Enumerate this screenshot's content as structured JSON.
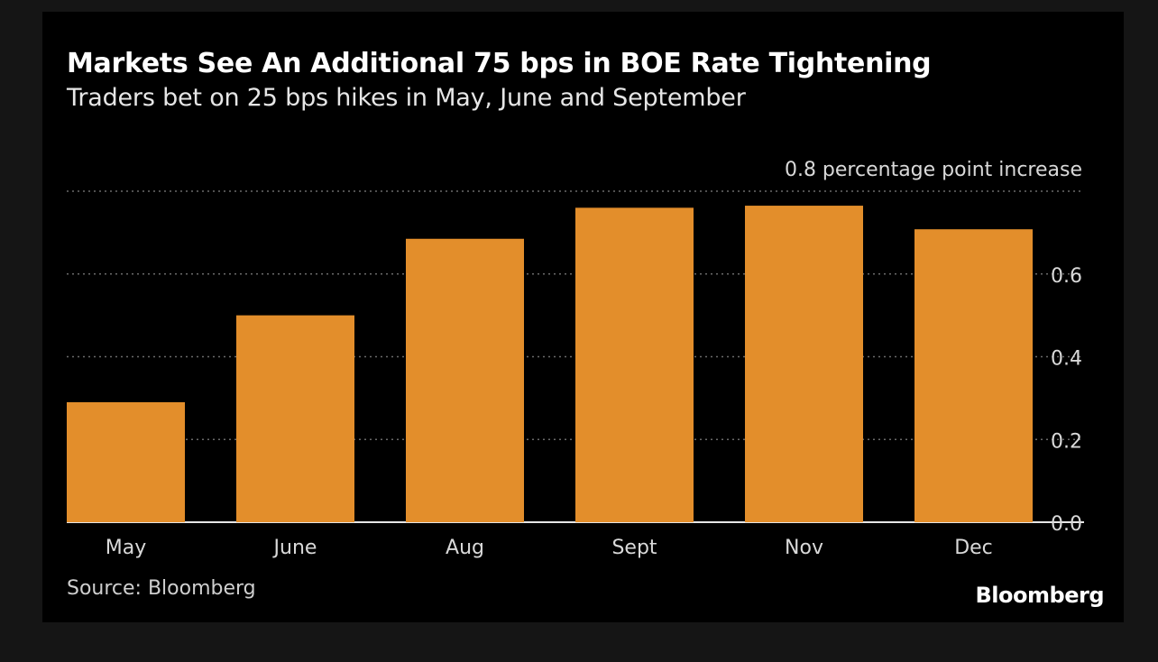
{
  "chart_data": {
    "type": "bar",
    "title": "Markets See An Additional 75 bps in BOE Rate Tightening",
    "subtitle": "Traders bet on 25 bps hikes in May, June and September",
    "categories": [
      "May",
      "June",
      "Aug",
      "Sept",
      "Nov",
      "Dec"
    ],
    "values": [
      0.29,
      0.5,
      0.685,
      0.76,
      0.765,
      0.708
    ],
    "ylim": [
      0,
      0.8
    ],
    "yticks": [
      "0.0",
      "0.2",
      "0.4",
      "0.6",
      "0.8"
    ],
    "top_tick_label": "percentage point increase",
    "grid": true,
    "y_axis_side": "right",
    "bar_color": "#e38e2b",
    "source": "Source: Bloomberg",
    "brand": "Bloomberg"
  }
}
